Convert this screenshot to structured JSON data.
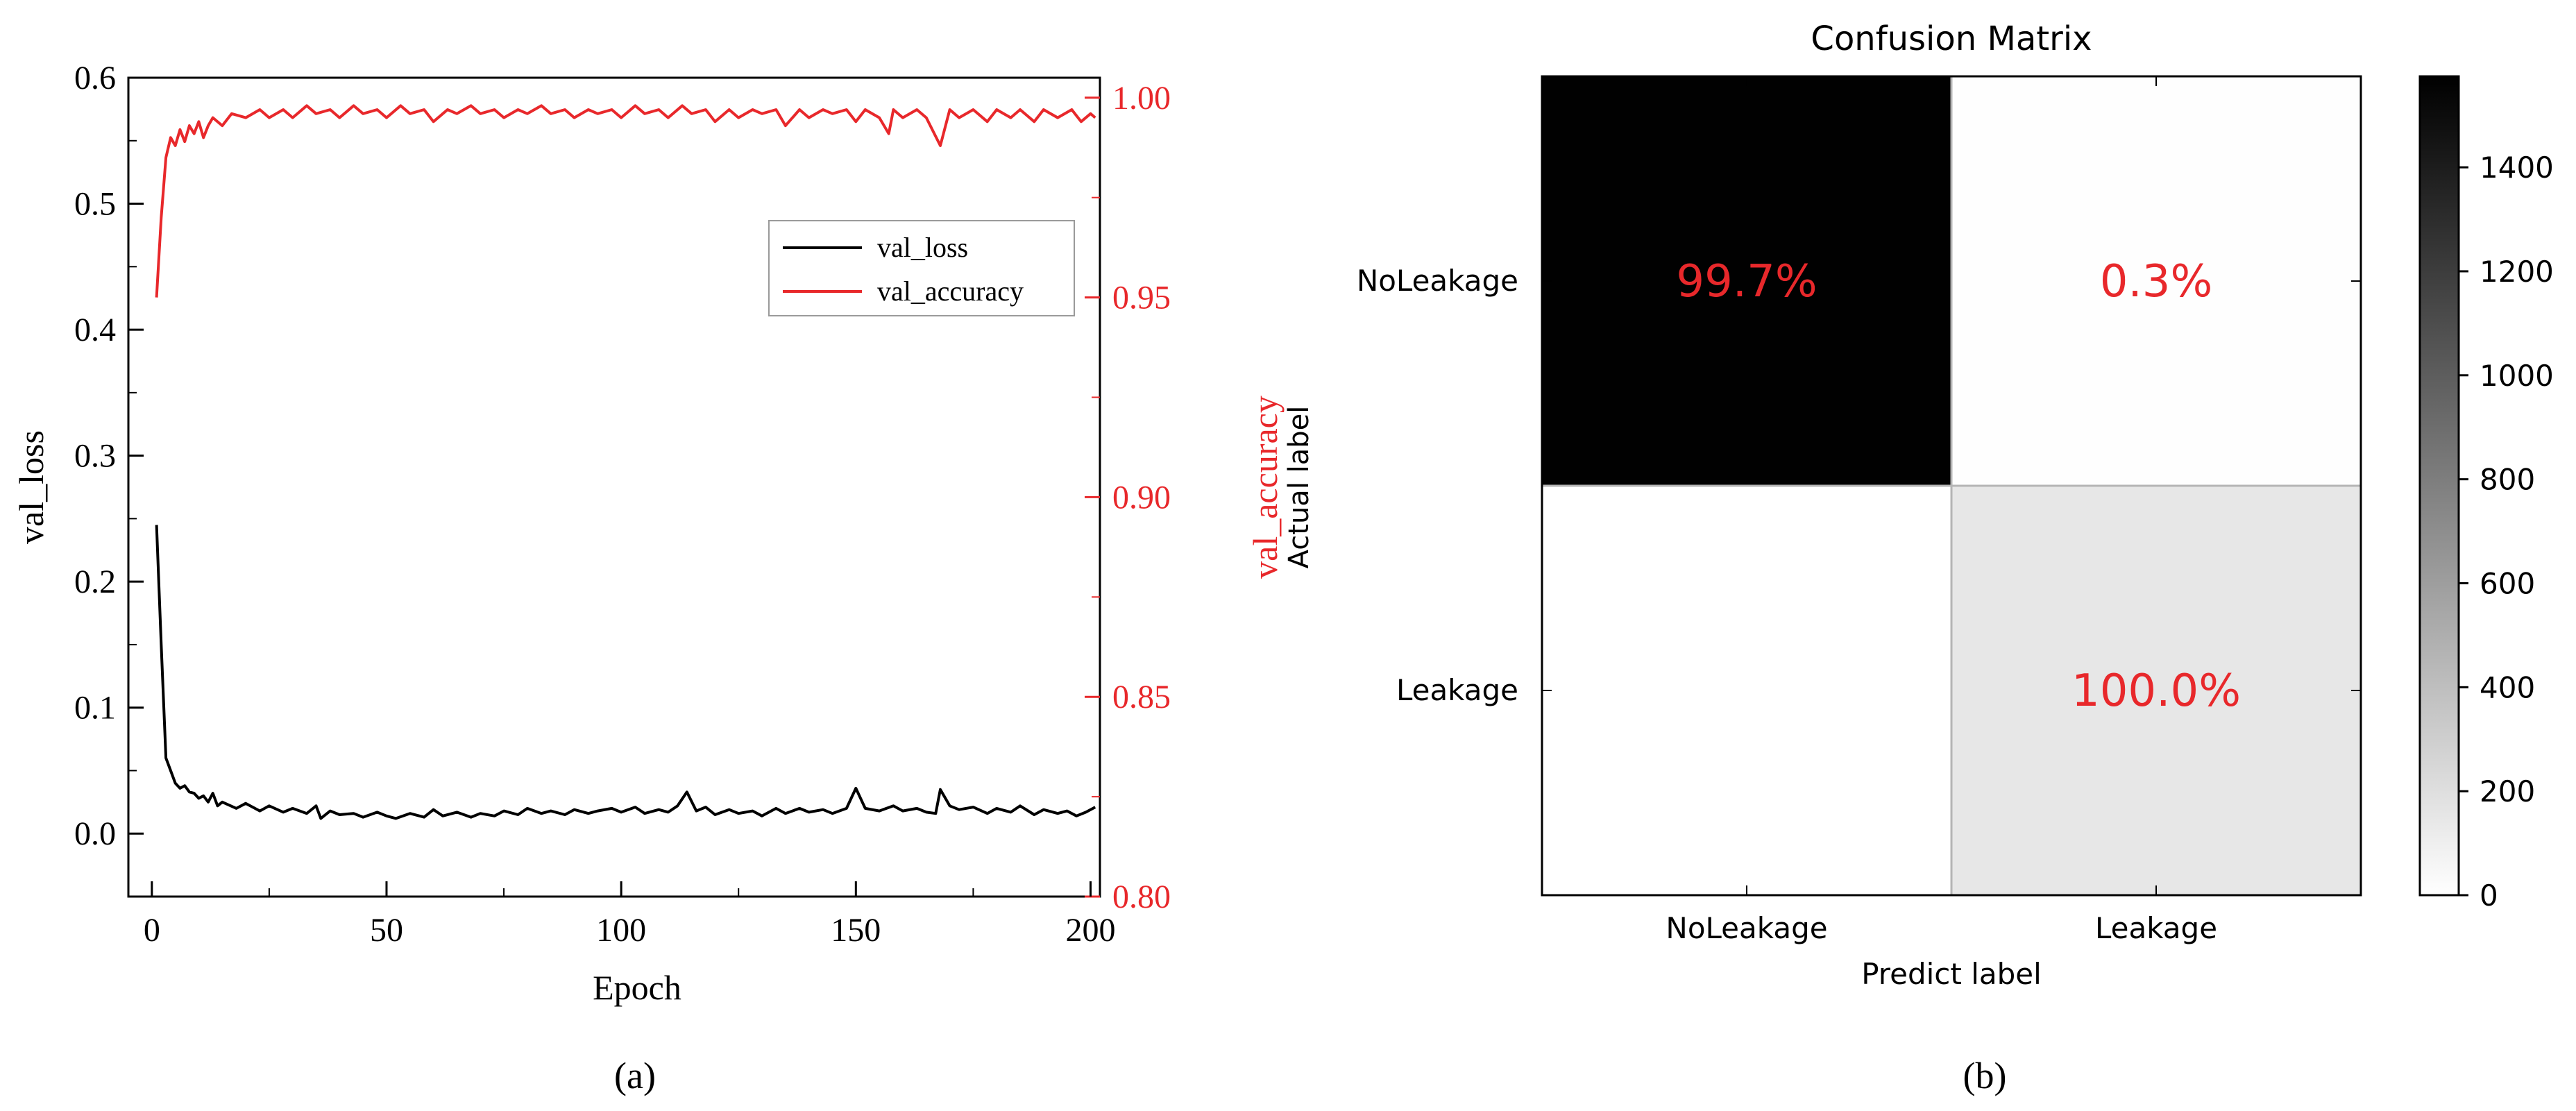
{
  "panel_a": {
    "caption": "(a)",
    "legend": {
      "loss_label": "val_loss",
      "accuracy_label": "val_accuracy"
    },
    "colors": {
      "loss": "#000000",
      "accuracy": "#e8282b"
    }
  },
  "panel_b": {
    "caption": "(b)",
    "title": "Confusion Matrix",
    "colors": {
      "annotation": "#e8282b"
    }
  },
  "chart_data": [
    {
      "type": "line",
      "title": "",
      "xlabel": "Epoch",
      "ylabel": "val_loss",
      "ylabel_right": "val_accuracy",
      "ylabel_right_overlap": "Actual label",
      "xlim": [
        -5,
        202
      ],
      "ylim": [
        -0.05,
        0.6
      ],
      "ylim_right": [
        0.8,
        1.005
      ],
      "xticks": [
        "0",
        "50",
        "100",
        "150",
        "200"
      ],
      "yticks": [
        "0.0",
        "0.1",
        "0.2",
        "0.3",
        "0.4",
        "0.5",
        "0.6"
      ],
      "yticks_right": [
        "0.80",
        "0.85",
        "0.90",
        "0.95",
        "1.00"
      ],
      "legend_position": "upper-right",
      "grid": false,
      "series": [
        {
          "name": "val_loss",
          "axis": "left",
          "color": "#000000",
          "points": [
            [
              1,
              0.245
            ],
            [
              2,
              0.15
            ],
            [
              3,
              0.06
            ],
            [
              4,
              0.05
            ],
            [
              5,
              0.04
            ],
            [
              6,
              0.036
            ],
            [
              7,
              0.038
            ],
            [
              8,
              0.033
            ],
            [
              9,
              0.032
            ],
            [
              10,
              0.028
            ],
            [
              11,
              0.03
            ],
            [
              12,
              0.025
            ],
            [
              13,
              0.032
            ],
            [
              14,
              0.022
            ],
            [
              15,
              0.025
            ],
            [
              18,
              0.02
            ],
            [
              20,
              0.024
            ],
            [
              23,
              0.018
            ],
            [
              25,
              0.022
            ],
            [
              28,
              0.017
            ],
            [
              30,
              0.02
            ],
            [
              33,
              0.016
            ],
            [
              35,
              0.022
            ],
            [
              36,
              0.012
            ],
            [
              38,
              0.018
            ],
            [
              40,
              0.015
            ],
            [
              43,
              0.016
            ],
            [
              45,
              0.013
            ],
            [
              48,
              0.017
            ],
            [
              50,
              0.014
            ],
            [
              52,
              0.012
            ],
            [
              55,
              0.016
            ],
            [
              58,
              0.013
            ],
            [
              60,
              0.019
            ],
            [
              62,
              0.014
            ],
            [
              65,
              0.017
            ],
            [
              68,
              0.013
            ],
            [
              70,
              0.016
            ],
            [
              73,
              0.014
            ],
            [
              75,
              0.018
            ],
            [
              78,
              0.015
            ],
            [
              80,
              0.02
            ],
            [
              83,
              0.016
            ],
            [
              85,
              0.018
            ],
            [
              88,
              0.015
            ],
            [
              90,
              0.019
            ],
            [
              93,
              0.016
            ],
            [
              95,
              0.018
            ],
            [
              98,
              0.02
            ],
            [
              100,
              0.017
            ],
            [
              103,
              0.021
            ],
            [
              105,
              0.016
            ],
            [
              108,
              0.019
            ],
            [
              110,
              0.017
            ],
            [
              112,
              0.022
            ],
            [
              114,
              0.033
            ],
            [
              116,
              0.018
            ],
            [
              118,
              0.021
            ],
            [
              120,
              0.015
            ],
            [
              123,
              0.019
            ],
            [
              125,
              0.016
            ],
            [
              128,
              0.018
            ],
            [
              130,
              0.014
            ],
            [
              133,
              0.02
            ],
            [
              135,
              0.016
            ],
            [
              138,
              0.02
            ],
            [
              140,
              0.017
            ],
            [
              143,
              0.019
            ],
            [
              145,
              0.016
            ],
            [
              148,
              0.02
            ],
            [
              150,
              0.036
            ],
            [
              152,
              0.02
            ],
            [
              155,
              0.018
            ],
            [
              158,
              0.022
            ],
            [
              160,
              0.018
            ],
            [
              163,
              0.02
            ],
            [
              165,
              0.017
            ],
            [
              167,
              0.016
            ],
            [
              168,
              0.035
            ],
            [
              170,
              0.022
            ],
            [
              172,
              0.019
            ],
            [
              175,
              0.021
            ],
            [
              178,
              0.016
            ],
            [
              180,
              0.02
            ],
            [
              183,
              0.017
            ],
            [
              185,
              0.022
            ],
            [
              188,
              0.015
            ],
            [
              190,
              0.019
            ],
            [
              193,
              0.016
            ],
            [
              195,
              0.018
            ],
            [
              197,
              0.014
            ],
            [
              199,
              0.017
            ],
            [
              201,
              0.021
            ]
          ]
        },
        {
          "name": "val_accuracy",
          "axis": "right",
          "color": "#e8282b",
          "points": [
            [
              1,
              0.95
            ],
            [
              2,
              0.97
            ],
            [
              3,
              0.985
            ],
            [
              4,
              0.99
            ],
            [
              5,
              0.988
            ],
            [
              6,
              0.992
            ],
            [
              7,
              0.989
            ],
            [
              8,
              0.993
            ],
            [
              9,
              0.991
            ],
            [
              10,
              0.994
            ],
            [
              11,
              0.99
            ],
            [
              12,
              0.993
            ],
            [
              13,
              0.995
            ],
            [
              15,
              0.993
            ],
            [
              17,
              0.996
            ],
            [
              20,
              0.995
            ],
            [
              23,
              0.997
            ],
            [
              25,
              0.995
            ],
            [
              28,
              0.997
            ],
            [
              30,
              0.995
            ],
            [
              33,
              0.998
            ],
            [
              35,
              0.996
            ],
            [
              38,
              0.997
            ],
            [
              40,
              0.995
            ],
            [
              43,
              0.998
            ],
            [
              45,
              0.996
            ],
            [
              48,
              0.997
            ],
            [
              50,
              0.995
            ],
            [
              53,
              0.998
            ],
            [
              55,
              0.996
            ],
            [
              58,
              0.997
            ],
            [
              60,
              0.994
            ],
            [
              63,
              0.997
            ],
            [
              65,
              0.996
            ],
            [
              68,
              0.998
            ],
            [
              70,
              0.996
            ],
            [
              73,
              0.997
            ],
            [
              75,
              0.995
            ],
            [
              78,
              0.997
            ],
            [
              80,
              0.996
            ],
            [
              83,
              0.998
            ],
            [
              85,
              0.996
            ],
            [
              88,
              0.997
            ],
            [
              90,
              0.995
            ],
            [
              93,
              0.997
            ],
            [
              95,
              0.996
            ],
            [
              98,
              0.997
            ],
            [
              100,
              0.995
            ],
            [
              103,
              0.998
            ],
            [
              105,
              0.996
            ],
            [
              108,
              0.997
            ],
            [
              110,
              0.995
            ],
            [
              113,
              0.998
            ],
            [
              115,
              0.996
            ],
            [
              118,
              0.997
            ],
            [
              120,
              0.994
            ],
            [
              123,
              0.997
            ],
            [
              125,
              0.995
            ],
            [
              128,
              0.997
            ],
            [
              130,
              0.996
            ],
            [
              133,
              0.997
            ],
            [
              135,
              0.993
            ],
            [
              138,
              0.997
            ],
            [
              140,
              0.995
            ],
            [
              143,
              0.997
            ],
            [
              145,
              0.996
            ],
            [
              148,
              0.997
            ],
            [
              150,
              0.994
            ],
            [
              152,
              0.997
            ],
            [
              155,
              0.995
            ],
            [
              157,
              0.991
            ],
            [
              158,
              0.997
            ],
            [
              160,
              0.995
            ],
            [
              163,
              0.997
            ],
            [
              165,
              0.995
            ],
            [
              168,
              0.988
            ],
            [
              170,
              0.997
            ],
            [
              172,
              0.995
            ],
            [
              175,
              0.997
            ],
            [
              178,
              0.994
            ],
            [
              180,
              0.997
            ],
            [
              183,
              0.995
            ],
            [
              185,
              0.997
            ],
            [
              188,
              0.994
            ],
            [
              190,
              0.997
            ],
            [
              193,
              0.995
            ],
            [
              196,
              0.997
            ],
            [
              198,
              0.994
            ],
            [
              200,
              0.996
            ],
            [
              201,
              0.995
            ]
          ]
        }
      ]
    },
    {
      "type": "heatmap",
      "title": "Confusion Matrix",
      "xlabel": "Predict label",
      "ylabel": "Actual label",
      "x_categories": [
        "NoLeakage",
        "Leakage"
      ],
      "y_categories": [
        "NoLeakage",
        "Leakage"
      ],
      "values": [
        [
          1570,
          5
        ],
        [
          0,
          150
        ]
      ],
      "annotations": [
        [
          "99.7%",
          "0.3%"
        ],
        [
          "",
          "100.0%"
        ]
      ],
      "colorbar": {
        "min": 0,
        "max": 1575,
        "ticks": [
          "0",
          "200",
          "400",
          "600",
          "800",
          "1000",
          "1200",
          "1400"
        ],
        "colormap": "Greys"
      }
    }
  ]
}
